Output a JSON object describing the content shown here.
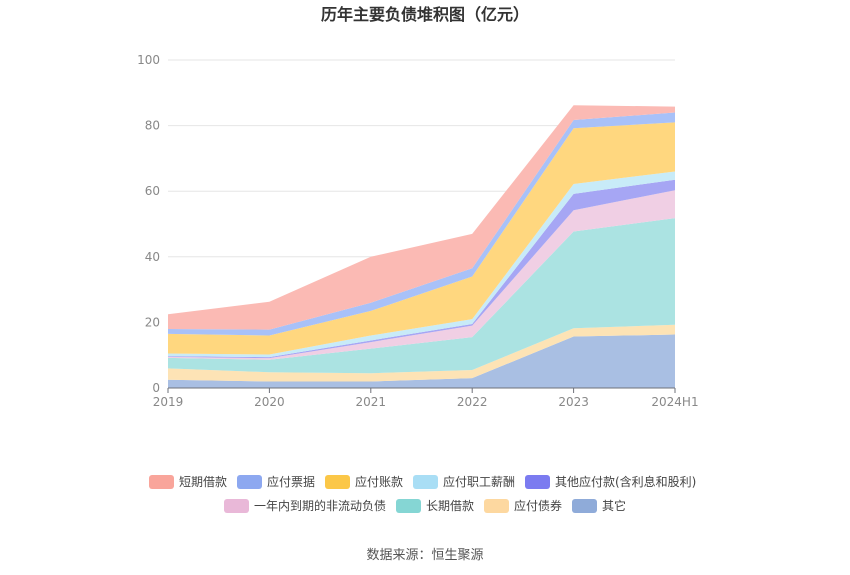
{
  "chart_data": {
    "type": "area",
    "stacked": true,
    "title": "历年主要负债堆积图（亿元）",
    "xlabel": "",
    "ylabel": "",
    "categories": [
      "2019",
      "2020",
      "2021",
      "2022",
      "2023",
      "2024H1"
    ],
    "ylim": [
      0,
      100
    ],
    "yticks": [
      0,
      20,
      40,
      60,
      80,
      100
    ],
    "grid": true,
    "legend_position": "bottom",
    "series": [
      {
        "name": "其它",
        "color": "#a9bfe3",
        "values": [
          2.5,
          2.0,
          2.0,
          3.0,
          15.7,
          16.3
        ]
      },
      {
        "name": "应付债券",
        "color": "#fde3b5",
        "values": [
          3.5,
          2.8,
          2.5,
          2.5,
          2.5,
          3.0
        ]
      },
      {
        "name": "长期借款",
        "color": "#abe3e2",
        "values": [
          3.2,
          3.8,
          7.5,
          10.0,
          29.5,
          32.5
        ]
      },
      {
        "name": "一年内到期的非流动负债",
        "color": "#f0cfe4",
        "values": [
          0.3,
          0.5,
          2.0,
          3.5,
          6.5,
          8.5
        ]
      },
      {
        "name": "其他应付款(含利息和股利)",
        "color": "#a6a6f4",
        "values": [
          0.2,
          0.3,
          0.5,
          0.5,
          5.0,
          3.2
        ]
      },
      {
        "name": "应付职工薪酬",
        "color": "#c8ebf8",
        "values": [
          0.8,
          0.8,
          1.5,
          1.5,
          3.0,
          2.5
        ]
      },
      {
        "name": "应付账款",
        "color": "#ffd77f",
        "values": [
          6.0,
          5.8,
          7.5,
          13.0,
          17.0,
          15.0
        ]
      },
      {
        "name": "应付票据",
        "color": "#a8c1f8",
        "values": [
          1.5,
          1.8,
          2.5,
          2.5,
          2.5,
          3.0
        ]
      },
      {
        "name": "短期借款",
        "color": "#fbbab4",
        "values": [
          4.5,
          8.5,
          14.0,
          10.5,
          4.5,
          1.8
        ]
      }
    ],
    "legend_order": [
      "短期借款",
      "应付票据",
      "应付账款",
      "应付职工薪酬",
      "其他应付款(含利息和股利)",
      "一年内到期的非流动负债",
      "长期借款",
      "应付债券",
      "其它"
    ],
    "legend_colors": {
      "短期借款": "#f9a59b",
      "应付票据": "#8da8f0",
      "应付账款": "#fbc748",
      "应付职工薪酬": "#a9def5",
      "其他应付款(含利息和股利)": "#7b7bf0",
      "一年内到期的非流动负债": "#e9b8d8",
      "长期借款": "#85d6d4",
      "应付债券": "#fdd8a0",
      "其它": "#8fabd9"
    },
    "source": "数据来源：恒生聚源"
  }
}
